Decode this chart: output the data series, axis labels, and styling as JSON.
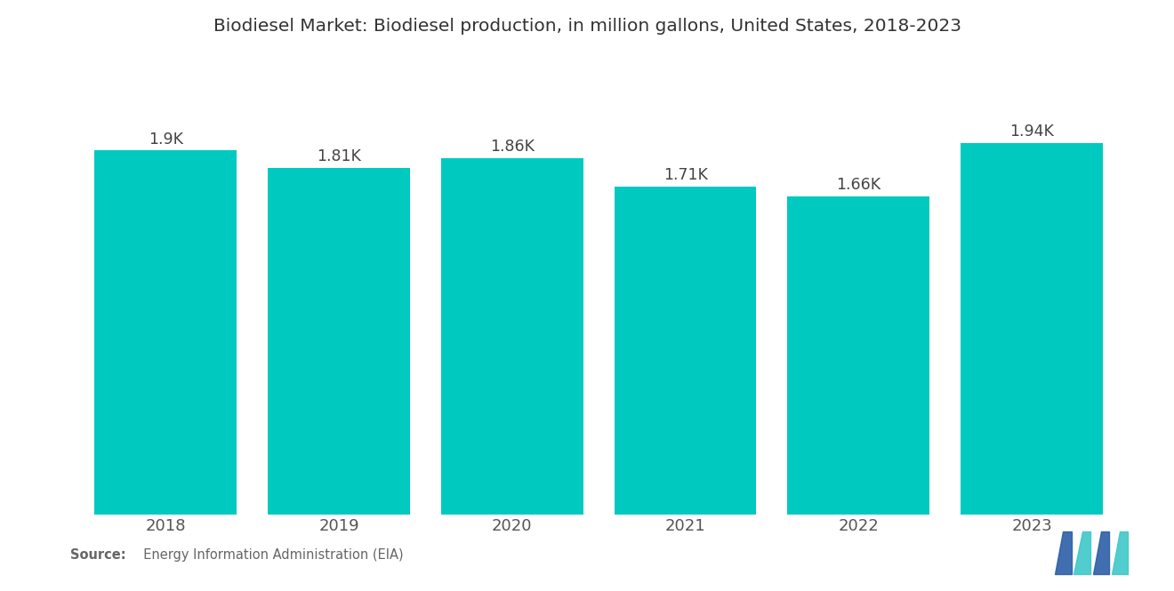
{
  "title": "Biodiesel Market: Biodiesel production, in million gallons, United States, 2018-2023",
  "categories": [
    "2018",
    "2019",
    "2020",
    "2021",
    "2022",
    "2023"
  ],
  "values": [
    1900,
    1810,
    1860,
    1710,
    1660,
    1940
  ],
  "labels": [
    "1.9K",
    "1.81K",
    "1.86K",
    "1.71K",
    "1.66K",
    "1.94K"
  ],
  "bar_color": "#00C9C0",
  "background_color": "#ffffff",
  "ylim": [
    0,
    2100
  ],
  "title_fontsize": 14.5,
  "label_fontsize": 12.5,
  "xtick_fontsize": 13,
  "source_bold": "Source:",
  "source_normal": "  Energy Information Administration (EIA)",
  "bar_width": 0.82,
  "logo_blue": "#2B5EA7",
  "logo_teal": "#3EC8C8"
}
